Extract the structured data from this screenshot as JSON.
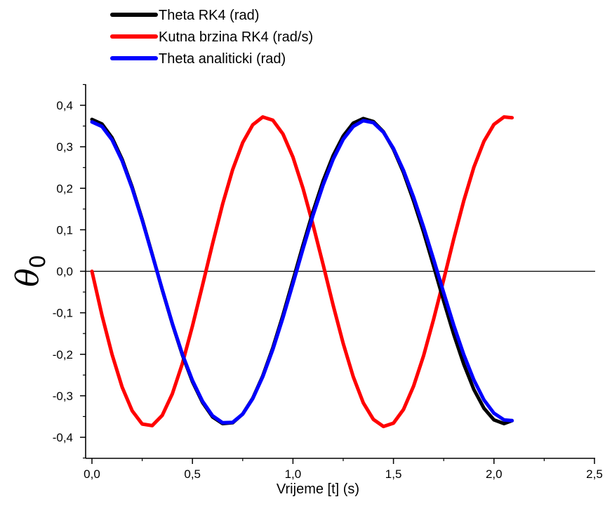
{
  "chart_data": {
    "type": "line",
    "xlabel": "Vrijeme [t] (s)",
    "ylabel": "θ",
    "ylabel_subscript": "0",
    "xlim": [
      0.0,
      2.5
    ],
    "ylim": [
      -0.45,
      0.45
    ],
    "x_ticks": [
      "0,0",
      "0,5",
      "1,0",
      "1,5",
      "2,0",
      "2,5"
    ],
    "y_ticks": [
      "0,4",
      "0,3",
      "0,2",
      "0,1",
      "0,0",
      "-0,1",
      "-0,2",
      "-0,3",
      "-0,4"
    ],
    "grid": false,
    "zero_line": true,
    "legend_position": "top-left, above plot",
    "series": [
      {
        "name": "Theta RK4 (rad)",
        "color": "#000000",
        "x": [
          0.0,
          0.05,
          0.1,
          0.15,
          0.2,
          0.25,
          0.3,
          0.35,
          0.4,
          0.45,
          0.5,
          0.55,
          0.6,
          0.65,
          0.7,
          0.75,
          0.8,
          0.85,
          0.9,
          0.95,
          1.0,
          1.05,
          1.1,
          1.15,
          1.2,
          1.25,
          1.3,
          1.35,
          1.4,
          1.45,
          1.5,
          1.55,
          1.6,
          1.65,
          1.7,
          1.75,
          1.8,
          1.85,
          1.9,
          1.95,
          2.0,
          2.05,
          2.09
        ],
        "y": [
          0.366,
          0.355,
          0.322,
          0.27,
          0.203,
          0.125,
          0.041,
          -0.045,
          -0.127,
          -0.202,
          -0.266,
          -0.316,
          -0.351,
          -0.367,
          -0.365,
          -0.344,
          -0.306,
          -0.252,
          -0.184,
          -0.106,
          -0.022,
          0.063,
          0.144,
          0.218,
          0.279,
          0.326,
          0.357,
          0.368,
          0.361,
          0.336,
          0.294,
          0.238,
          0.17,
          0.094,
          0.012,
          -0.072,
          -0.152,
          -0.224,
          -0.285,
          -0.33,
          -0.358,
          -0.367,
          -0.36
        ]
      },
      {
        "name": "Kutna brzina RK4 (rad/s)",
        "color": "#ff0000",
        "x": [
          0.0,
          0.05,
          0.1,
          0.15,
          0.2,
          0.25,
          0.3,
          0.35,
          0.4,
          0.45,
          0.5,
          0.55,
          0.6,
          0.65,
          0.7,
          0.75,
          0.8,
          0.85,
          0.9,
          0.95,
          1.0,
          1.05,
          1.1,
          1.15,
          1.2,
          1.25,
          1.3,
          1.35,
          1.4,
          1.45,
          1.5,
          1.55,
          1.6,
          1.65,
          1.7,
          1.75,
          1.8,
          1.85,
          1.9,
          1.95,
          2.0,
          2.05,
          2.09
        ],
        "y": [
          0.0,
          -0.106,
          -0.2,
          -0.279,
          -0.336,
          -0.368,
          -0.372,
          -0.347,
          -0.295,
          -0.222,
          -0.132,
          -0.034,
          0.066,
          0.162,
          0.245,
          0.31,
          0.353,
          0.372,
          0.364,
          0.331,
          0.275,
          0.2,
          0.112,
          0.016,
          -0.082,
          -0.174,
          -0.254,
          -0.317,
          -0.357,
          -0.374,
          -0.366,
          -0.333,
          -0.277,
          -0.203,
          -0.115,
          -0.02,
          0.078,
          0.17,
          0.251,
          0.313,
          0.354,
          0.372,
          0.37
        ]
      },
      {
        "name": "Theta analiticki (rad)",
        "color": "#0000ff",
        "x": [
          0.0,
          0.05,
          0.1,
          0.15,
          0.2,
          0.25,
          0.3,
          0.35,
          0.4,
          0.45,
          0.5,
          0.55,
          0.6,
          0.65,
          0.7,
          0.75,
          0.8,
          0.85,
          0.9,
          0.95,
          1.0,
          1.05,
          1.1,
          1.15,
          1.2,
          1.25,
          1.3,
          1.35,
          1.4,
          1.45,
          1.5,
          1.55,
          1.6,
          1.65,
          1.7,
          1.75,
          1.8,
          1.85,
          1.9,
          1.95,
          2.0,
          2.05,
          2.09
        ],
        "y": [
          0.36,
          0.349,
          0.317,
          0.266,
          0.2,
          0.123,
          0.04,
          -0.044,
          -0.126,
          -0.2,
          -0.263,
          -0.313,
          -0.348,
          -0.365,
          -0.364,
          -0.344,
          -0.307,
          -0.254,
          -0.188,
          -0.112,
          -0.03,
          0.054,
          0.135,
          0.208,
          0.27,
          0.318,
          0.349,
          0.363,
          0.358,
          0.335,
          0.296,
          0.243,
          0.179,
          0.106,
          0.028,
          -0.052,
          -0.13,
          -0.201,
          -0.262,
          -0.31,
          -0.342,
          -0.358,
          -0.36
        ]
      }
    ]
  }
}
